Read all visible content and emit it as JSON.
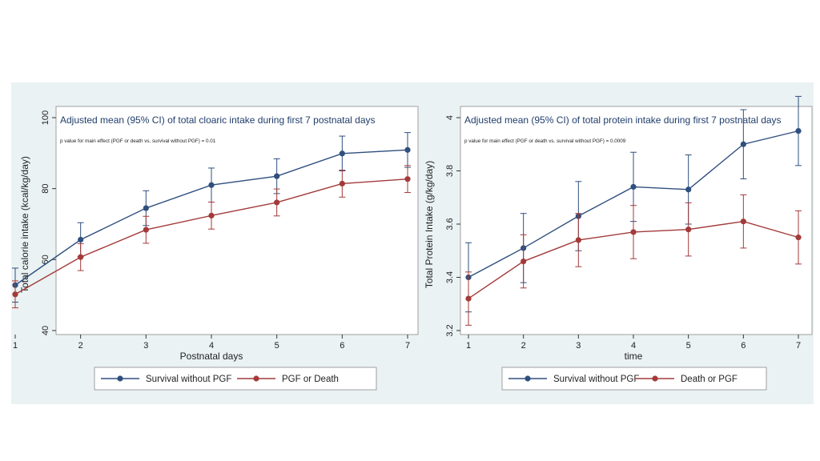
{
  "colors": {
    "background": "#eaf2f3",
    "plot_background": "#ffffff",
    "series_blue": "#2f4f7e",
    "series_red": "#a33a3a",
    "title_text": "#1f3d6b"
  },
  "chart_data": [
    {
      "type": "line",
      "title": "Adjusted mean (95% CI) of total cloaric intake during first 7 postnatal days",
      "subtitle": "p value for main effect (PGF or death vs. survival without PGF) = 0.01",
      "xlabel": "Postnatal days",
      "ylabel": "Total calorie intake (kcal/kg/day)",
      "x": [
        1,
        2,
        3,
        4,
        5,
        6,
        7
      ],
      "xlim": [
        1,
        7
      ],
      "ylim": [
        40,
        100
      ],
      "yticks": [
        40,
        60,
        80,
        100
      ],
      "grid": false,
      "legend_position": "bottom",
      "series": [
        {
          "name": "Survival without PGF",
          "color": "#2f4f7e",
          "values": [
            52.8,
            65.6,
            74.5,
            81.0,
            83.5,
            89.9,
            90.9
          ],
          "ci_low": [
            48.0,
            60.8,
            69.6,
            76.2,
            78.6,
            85.0,
            86.0
          ],
          "ci_high": [
            57.6,
            70.4,
            79.4,
            85.8,
            88.4,
            94.8,
            95.8
          ]
        },
        {
          "name": "PGF or Death",
          "color": "#a33a3a",
          "values": [
            50.2,
            60.7,
            68.4,
            72.4,
            76.1,
            81.4,
            82.7
          ],
          "ci_low": [
            46.4,
            56.9,
            64.6,
            68.6,
            72.3,
            77.6,
            78.9
          ],
          "ci_high": [
            54.0,
            64.5,
            72.2,
            76.2,
            79.9,
            85.2,
            86.5
          ]
        }
      ]
    },
    {
      "type": "line",
      "title": "Adjusted mean (95% CI) of total protein intake during first 7 postnatal days",
      "subtitle": "p value for main effect (PGF or death vs. survival without PGF) = 0.0009",
      "xlabel": "time",
      "ylabel": "Total Protein Intake (g/kg/day)",
      "x": [
        1,
        2,
        3,
        4,
        5,
        6,
        7
      ],
      "xlim": [
        1,
        7
      ],
      "ylim": [
        3.2,
        4.0
      ],
      "yticks": [
        3.2,
        3.4,
        3.6,
        3.8,
        4.0
      ],
      "ytick_labels": [
        "3.2",
        "3.4",
        "3.6",
        "3.8",
        "4"
      ],
      "grid": false,
      "legend_position": "bottom",
      "series": [
        {
          "name": "Survival without PGF",
          "color": "#2f4f7e",
          "values": [
            3.4,
            3.51,
            3.63,
            3.74,
            3.73,
            3.9,
            3.95
          ],
          "ci_low": [
            3.27,
            3.38,
            3.5,
            3.61,
            3.6,
            3.77,
            3.82
          ],
          "ci_high": [
            3.53,
            3.64,
            3.76,
            3.87,
            3.86,
            4.03,
            4.08
          ]
        },
        {
          "name": "Death or PGF",
          "color": "#a33a3a",
          "values": [
            3.32,
            3.46,
            3.54,
            3.57,
            3.58,
            3.61,
            3.55
          ],
          "ci_low": [
            3.22,
            3.36,
            3.44,
            3.47,
            3.48,
            3.51,
            3.45
          ],
          "ci_high": [
            3.42,
            3.56,
            3.64,
            3.67,
            3.68,
            3.71,
            3.65
          ]
        }
      ]
    }
  ]
}
